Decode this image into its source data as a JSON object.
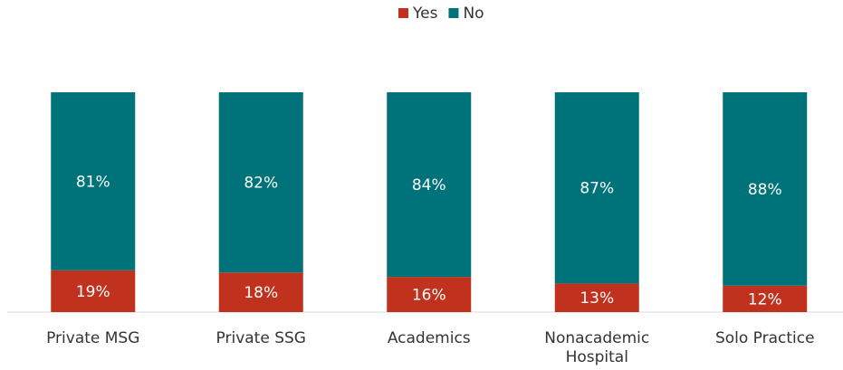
{
  "chart_data": {
    "type": "stacked_bar",
    "categories": [
      "Private MSG",
      "Private SSG",
      "Academics",
      "Nonacademic Hospital",
      "Solo Practice"
    ],
    "series": [
      {
        "name": "Yes",
        "color": "#c0321e",
        "values": [
          19,
          18,
          16,
          13,
          12
        ],
        "value_labels": [
          "19%",
          "18%",
          "16%",
          "13%",
          "12%"
        ]
      },
      {
        "name": "No",
        "color": "#00737a",
        "values": [
          81,
          82,
          84,
          87,
          88
        ],
        "value_labels": [
          "81%",
          "82%",
          "84%",
          "87%",
          "88%"
        ]
      }
    ],
    "ylim": [
      0,
      100
    ],
    "legend": "top"
  }
}
